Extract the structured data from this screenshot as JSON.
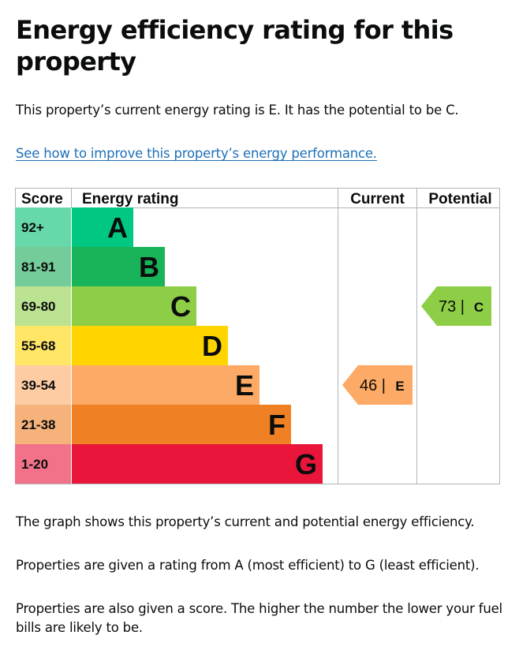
{
  "page": {
    "title": "Energy efficiency rating for this property",
    "summary": "This property’s current energy rating is E. It has the potential to be C.",
    "improve_link": "See how to improve this property’s energy performance.",
    "graph_text": "The graph shows this property’s current and potential energy efficiency.",
    "range_text": "Properties are given a rating from A (most efficient) to G (least efficient).",
    "score_text": "Properties are also given a score. The higher the number the lower your fuel bills are likely to be."
  },
  "chart_data": {
    "type": "bar",
    "columns": [
      "Score",
      "Energy rating",
      "Current",
      "Potential"
    ],
    "bands": [
      {
        "letter": "A",
        "range": "92+",
        "min": 92,
        "color": "#00c781",
        "score_bg": "#66d8a9"
      },
      {
        "letter": "B",
        "range": "81-91",
        "min": 81,
        "color": "#19b459",
        "score_bg": "#73cc99"
      },
      {
        "letter": "C",
        "range": "69-80",
        "min": 69,
        "color": "#8dce46",
        "score_bg": "#bae291"
      },
      {
        "letter": "D",
        "range": "55-68",
        "min": 55,
        "color": "#ffd500",
        "score_bg": "#ffe666"
      },
      {
        "letter": "E",
        "range": "39-54",
        "min": 39,
        "color": "#fcaa65",
        "score_bg": "#fdcca3"
      },
      {
        "letter": "F",
        "range": "21-38",
        "min": 21,
        "color": "#ef8023",
        "score_bg": "#f5b37b"
      },
      {
        "letter": "G",
        "range": "1-20",
        "min": 1,
        "color": "#e9153b",
        "score_bg": "#f27389"
      }
    ],
    "current": {
      "score": 46,
      "rating": "E",
      "label": "46 |",
      "color": "#fcaa65"
    },
    "potential": {
      "score": 73,
      "rating": "C",
      "label": "73 |",
      "color": "#8dce46"
    }
  }
}
